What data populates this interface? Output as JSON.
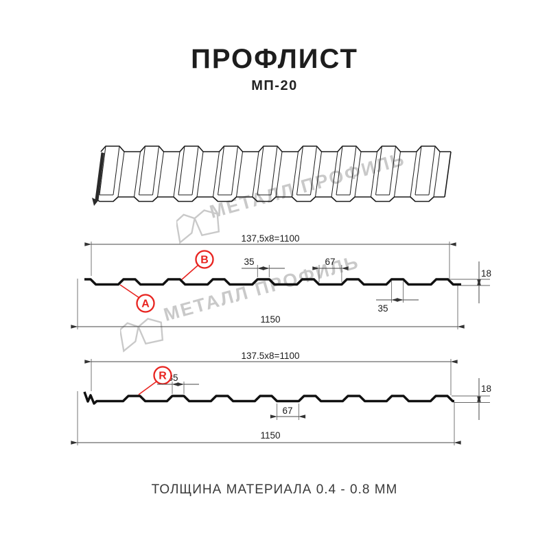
{
  "header": {
    "title": "ПРОФЛИСТ",
    "subtitle": "МП-20"
  },
  "footer": {
    "thickness_note": "ТОЛЩИНА МАТЕРИАЛА 0.4 - 0.8 ММ"
  },
  "watermark": {
    "text": "МЕТАЛЛ ПРОФИЛЬ"
  },
  "colors": {
    "accent_red": "#e8231f",
    "line_black": "#1a1a1a",
    "watermark_gray": "#c9c9c9"
  },
  "section_top": {
    "coverage_dim": "137,5x8=1100",
    "crest_top_width_dim": "35",
    "valley_width_dim": "67",
    "profile_height_dim": "18",
    "bottom_crest_width_dim": "35",
    "overall_width_dim": "1150",
    "marker_a": "A",
    "marker_b": "B"
  },
  "section_bottom": {
    "coverage_dim": "137.5x8=1100",
    "crest_top_width_dim": "35",
    "profile_height_dim": "18",
    "valley_width_dim": "67",
    "overall_width_dim": "1150",
    "marker_r": "R"
  }
}
